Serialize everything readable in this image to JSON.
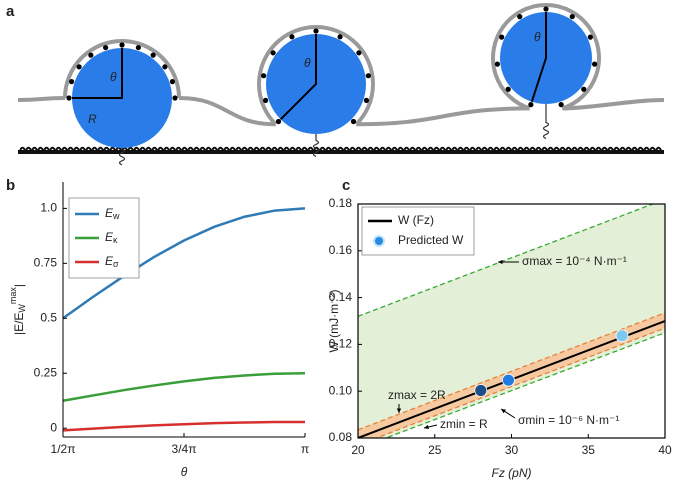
{
  "panels": [
    "a",
    "b",
    "c"
  ],
  "diagram": {
    "labels": [
      "θ",
      "R",
      "θ",
      "θ"
    ]
  },
  "chart_data": [
    {
      "type": "line",
      "xlabel": "θ",
      "ylabel": {
        "base": "|E/E",
        "sub": "W",
        "sup": "max",
        "close": "|"
      },
      "x": [
        1.5708,
        1.7671,
        1.9635,
        2.1598,
        2.3562,
        2.5525,
        2.7489,
        2.9452,
        3.1416
      ],
      "series": [
        {
          "name": "Ew",
          "color": "#2e7bb6",
          "values": [
            0.5,
            0.598,
            0.691,
            0.778,
            0.854,
            0.916,
            0.962,
            0.99,
            1.0
          ]
        },
        {
          "name": "Eκ",
          "color": "#3a9e3a",
          "values": [
            0.125,
            0.149,
            0.173,
            0.194,
            0.213,
            0.229,
            0.24,
            0.248,
            0.25
          ]
        },
        {
          "name": "Eσ",
          "color": "#d62f2f",
          "values": [
            -0.01,
            -0.002,
            0.006,
            0.013,
            0.018,
            0.023,
            0.026,
            0.028,
            0.028
          ]
        }
      ],
      "xlim": [
        1.5708,
        3.1416
      ],
      "xticks": [
        {
          "value": 1.5708,
          "label": "1/2π"
        },
        {
          "value": 2.3562,
          "label": "3/4π"
        },
        {
          "value": 3.1416,
          "label": "π"
        }
      ],
      "ylim": [
        -0.04,
        1.12
      ],
      "yticks": [
        0,
        0.25,
        0.5,
        0.75,
        {
          "value": 1,
          "label": "1.0"
        }
      ],
      "grid": false,
      "legend": "upper left"
    },
    {
      "type": "line",
      "xlabel": "Fz (pN)",
      "ylabel": "W (mJ·m⁻²)",
      "series": [
        {
          "name": "W (Fz)",
          "color": "#000000",
          "x": [
            20,
            40
          ],
          "values": [
            0.08,
            0.13
          ]
        },
        {
          "name": "Predicted W",
          "color": "#2a8ae0",
          "style": "points",
          "x": [
            28,
            29.8,
            37.2
          ],
          "values": [
            0.1003,
            0.1047,
            0.1237
          ],
          "colors": [
            "#1a4f8a",
            "#1e7be0",
            "#7cc8f0"
          ]
        }
      ],
      "areas": [
        {
          "color": "#e3efd7",
          "edge": "#3aaa35",
          "x": [
            20,
            40
          ],
          "lower": [
            0.0755,
            0.125
          ],
          "upper": [
            0.132,
            0.182
          ]
        },
        {
          "color": "#f6c9a0",
          "edge": "#e8823a",
          "x": [
            20,
            40
          ],
          "lower": [
            0.077,
            0.127
          ],
          "upper": [
            0.0835,
            0.1335
          ]
        }
      ],
      "annotations": [
        "σmax = 10⁻⁴ N·m⁻¹",
        "σmin = 10⁻⁶ N·m⁻¹",
        "zmax = 2R",
        "zmin = R"
      ],
      "xlim": [
        20,
        40
      ],
      "xticks": [
        20,
        25,
        30,
        35,
        40
      ],
      "ylim": [
        0.08,
        0.18
      ],
      "yticks": [
        0.08,
        {
          "value": 0.1,
          "label": "0.10"
        },
        0.12,
        0.14,
        0.16,
        0.18
      ],
      "grid": false,
      "legend": "upper left"
    }
  ]
}
